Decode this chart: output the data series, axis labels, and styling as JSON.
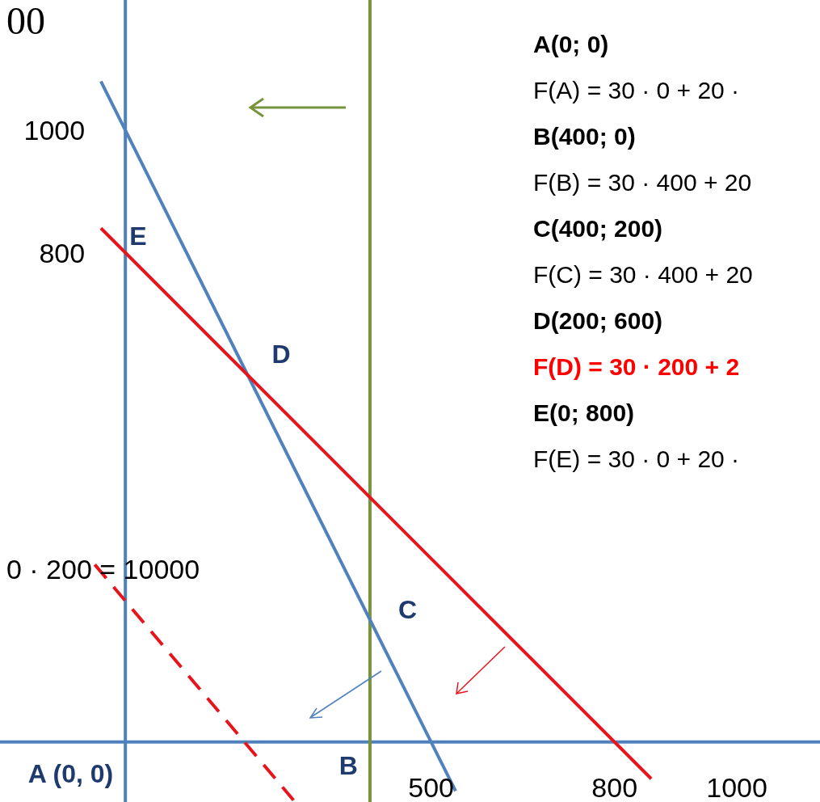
{
  "chart_data": {
    "type": "line",
    "xlim": [
      -205,
      1136
    ],
    "ylim": [
      -98,
      1213
    ],
    "xticks": [
      500,
      800,
      1000
    ],
    "yticks": [
      800,
      1000
    ],
    "series": [
      {
        "color": "#4f81bd",
        "x": [
          -40,
          540
        ],
        "values": [
          1080,
          -80
        ]
      },
      {
        "color": "#e8141b",
        "x": [
          -40,
          860
        ],
        "values": [
          840,
          -60
        ]
      },
      {
        "color": "#e8141b",
        "x": [
          -50,
          275
        ],
        "values": [
          290,
          -95
        ],
        "line_style": "dashed"
      }
    ],
    "ref_lines": [
      {
        "axis": "x",
        "value": 0,
        "color": "#4f81bd"
      },
      {
        "axis": "y",
        "value": 0,
        "color": "#4f81bd"
      },
      {
        "axis": "x",
        "value": 400,
        "color": "#77933c"
      }
    ],
    "annotations": [
      {
        "text": "A (0, 0)",
        "x": 0,
        "y": 0
      },
      {
        "text": "B",
        "x": 400,
        "y": 0
      },
      {
        "text": "C",
        "x": 400,
        "y": 200
      },
      {
        "text": "D",
        "x": 200,
        "y": 600
      },
      {
        "text": "E",
        "x": 0,
        "y": 800
      },
      "00",
      "0 · 200 = 10000",
      "A(0; 0)",
      "F(A) = 30 · 0 + 20 ·",
      "B(400; 0)",
      "F(B) = 30 · 400 + 20",
      "C(400; 200)",
      "F(C) = 30 · 400 + 20",
      "D(200; 600)",
      "F(D) = 30 · 200 + 2",
      "E(0; 800)",
      "F(E) = 30 · 0 + 20 ·"
    ]
  }
}
